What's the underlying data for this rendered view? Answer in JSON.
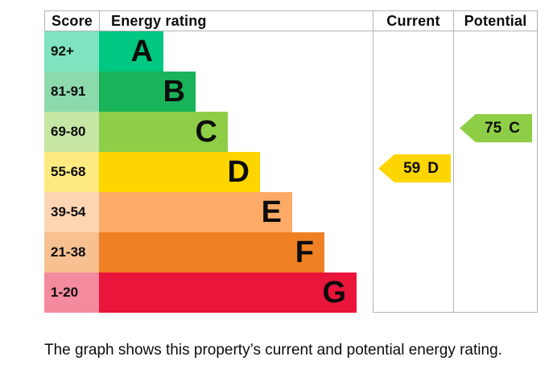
{
  "header": {
    "score": "Score",
    "energy_rating": "Energy rating",
    "current": "Current",
    "potential": "Potential"
  },
  "caption": "The graph shows this property’s current and potential energy rating.",
  "colors": {
    "border": "#b1b4b6",
    "text": "#0b0c0c"
  },
  "chart_data": {
    "type": "bar",
    "chart_kind": "epc-energy-rating",
    "orientation": "horizontal",
    "columns": [
      "Score",
      "Energy rating",
      "Current",
      "Potential"
    ],
    "bands": [
      {
        "letter": "A",
        "score_range": "92+",
        "color": "#00c781",
        "tint": "#80e3c0"
      },
      {
        "letter": "B",
        "score_range": "81-91",
        "color": "#19b459",
        "tint": "#8cdaac"
      },
      {
        "letter": "C",
        "score_range": "69-80",
        "color": "#8dce46",
        "tint": "#c6e7a3"
      },
      {
        "letter": "D",
        "score_range": "55-68",
        "color": "#ffd500",
        "tint": "#ffea80"
      },
      {
        "letter": "E",
        "score_range": "39-54",
        "color": "#fcaa65",
        "tint": "#fed5b2"
      },
      {
        "letter": "F",
        "score_range": "21-38",
        "color": "#ef8023",
        "tint": "#f7c091"
      },
      {
        "letter": "G",
        "score_range": "1-20",
        "color": "#e9153b",
        "tint": "#f48a9d"
      }
    ],
    "current": {
      "score": 59,
      "band": "D"
    },
    "potential": {
      "score": 75,
      "band": "C"
    }
  }
}
